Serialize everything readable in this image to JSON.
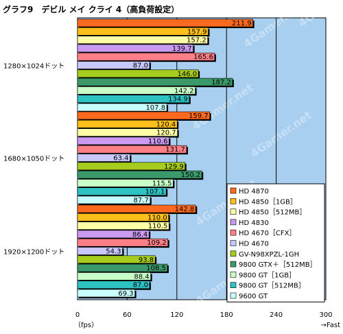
{
  "chart_data": {
    "type": "bar",
    "orientation": "horizontal",
    "title": "グラフ9　デビル メイ クライ 4（高負荷設定）",
    "xlabel_left": "（fps）",
    "xlabel_right": "→Fast",
    "xlim": [
      0,
      300
    ],
    "xticks": [
      "0",
      "60",
      "120",
      "180",
      "240",
      "300"
    ],
    "watermark": "4Gamer.net",
    "categories": [
      "1280×1024ドット",
      "1680×1050ドット",
      "1920×1200ドット"
    ],
    "series": [
      {
        "name": "HD 4870",
        "color": "#ff6a1f",
        "values": [
          211.9,
          159.7,
          142.8
        ]
      },
      {
        "name": "HD 4850［1GB］",
        "color": "#ffbf1a",
        "values": [
          157.9,
          120.4,
          110.0
        ]
      },
      {
        "name": "HD 4850［512MB］",
        "color": "#ffffa8",
        "values": [
          157.2,
          120.7,
          110.5
        ]
      },
      {
        "name": "HD 4830",
        "color": "#c99af0",
        "values": [
          139.7,
          110.6,
          86.4
        ]
      },
      {
        "name": "HD 4670［CFX］",
        "color": "#ff7f86",
        "values": [
          165.6,
          131.7,
          109.2
        ]
      },
      {
        "name": "HD 4670",
        "color": "#c8c8ff",
        "values": [
          87.0,
          63.4,
          54.3
        ]
      },
      {
        "name": "GV-N98XPZL-1GH",
        "color": "#a6cc1e",
        "values": [
          146.0,
          129.9,
          93.8
        ]
      },
      {
        "name": "9800 GTX＋［512MB］",
        "color": "#3a9a6a",
        "values": [
          187.2,
          150.2,
          108.5
        ]
      },
      {
        "name": "9800 GT［1GB］",
        "color": "#c8ffc8",
        "values": [
          142.2,
          115.5,
          88.4
        ]
      },
      {
        "name": "9800 GT［512MB］",
        "color": "#2ec2c2",
        "values": [
          134.9,
          107.1,
          87.0
        ]
      },
      {
        "name": "9600 GT",
        "color": "#c8ffff",
        "values": [
          107.8,
          87.7,
          69.3
        ]
      }
    ],
    "value_labels": [
      [
        "211.9",
        "157.9",
        "157.2",
        "139.7",
        "165.6",
        "87.0",
        "146.0",
        "187.2",
        "142.2",
        "134.9",
        "107.8"
      ],
      [
        "159.7",
        "120.4",
        "120.7",
        "110.6",
        "131.7",
        "63.4",
        "129.9",
        "150.2",
        "115.5",
        "107.1",
        "87.7"
      ],
      [
        "142.8",
        "110.0",
        "110.5",
        "86.4",
        "109.2",
        "54.3",
        "93.8",
        "108.5",
        "88.4",
        "87.0",
        "69.3"
      ]
    ],
    "colors": {
      "plot_background": "#a8cef0",
      "gridline": "#000000"
    },
    "grid": true,
    "legend_position": "bottom-right"
  }
}
